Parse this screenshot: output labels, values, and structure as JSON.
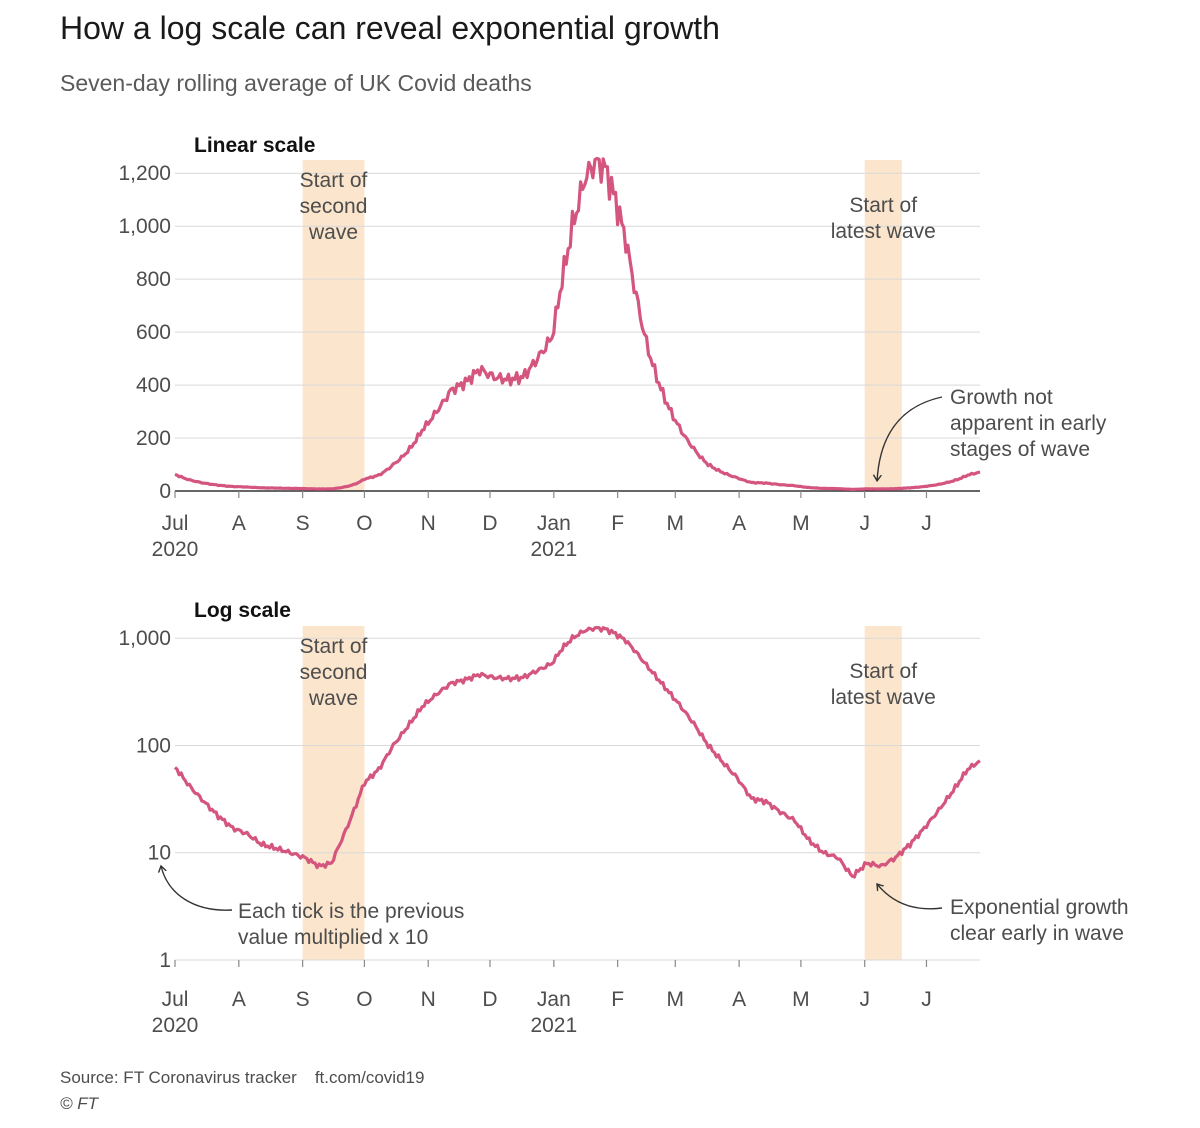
{
  "title": "How a log scale can reveal exponential growth",
  "subtitle": "Seven-day rolling average of UK Covid deaths",
  "source": "Source: FT Coronavirus tracker",
  "source_url": "ft.com/covid19",
  "copyright": "© FT",
  "colors": {
    "line": "#d4557d",
    "band": "#fbe5cc",
    "grid": "#d9d9d9",
    "axis": "#333333",
    "text": "#4d4d4d"
  },
  "chart_data": [
    {
      "type": "line",
      "panel_label": "Linear scale",
      "scale": "linear",
      "ylim": [
        0,
        1250
      ],
      "yticks": [
        0,
        200,
        400,
        600,
        800,
        1000,
        1200
      ],
      "ytick_labels": [
        "0",
        "200",
        "400",
        "600",
        "800",
        "1,000",
        "1,200"
      ],
      "xlim": [
        "2020-07-01",
        "2021-07-27"
      ],
      "xticks": [
        {
          "date": "2020-07-01",
          "label": "Jul",
          "year": "2020"
        },
        {
          "date": "2020-08-01",
          "label": "A"
        },
        {
          "date": "2020-09-01",
          "label": "S"
        },
        {
          "date": "2020-10-01",
          "label": "O"
        },
        {
          "date": "2020-11-01",
          "label": "N"
        },
        {
          "date": "2020-12-01",
          "label": "D"
        },
        {
          "date": "2021-01-01",
          "label": "Jan",
          "year": "2021"
        },
        {
          "date": "2021-02-01",
          "label": "F"
        },
        {
          "date": "2021-03-01",
          "label": "M"
        },
        {
          "date": "2021-04-01",
          "label": "A"
        },
        {
          "date": "2021-05-01",
          "label": "M"
        },
        {
          "date": "2021-06-01",
          "label": "J"
        },
        {
          "date": "2021-07-01",
          "label": "J"
        }
      ],
      "bands": [
        {
          "start": "2020-09-01",
          "end": "2020-10-01",
          "label_lines": [
            "Start of",
            "second",
            "wave"
          ]
        },
        {
          "start": "2021-06-01",
          "end": "2021-06-19",
          "label_lines": [
            "Start of",
            "latest wave"
          ]
        }
      ],
      "annotation": {
        "lines": [
          "Growth not",
          "apparent in early",
          "stages of wave"
        ],
        "target": {
          "date": "2021-06-07",
          "value": 8
        }
      }
    },
    {
      "type": "line",
      "panel_label": "Log scale",
      "scale": "log",
      "ylim": [
        1,
        1300
      ],
      "yticks": [
        1,
        10,
        100,
        1000
      ],
      "ytick_labels": [
        "1",
        "10",
        "100",
        "1,000"
      ],
      "xlim": [
        "2020-07-01",
        "2021-07-27"
      ],
      "xticks": [
        {
          "date": "2020-07-01",
          "label": "Jul",
          "year": "2020"
        },
        {
          "date": "2020-08-01",
          "label": "A"
        },
        {
          "date": "2020-09-01",
          "label": "S"
        },
        {
          "date": "2020-10-01",
          "label": "O"
        },
        {
          "date": "2020-11-01",
          "label": "N"
        },
        {
          "date": "2020-12-01",
          "label": "D"
        },
        {
          "date": "2021-01-01",
          "label": "Jan",
          "year": "2021"
        },
        {
          "date": "2021-02-01",
          "label": "F"
        },
        {
          "date": "2021-03-01",
          "label": "M"
        },
        {
          "date": "2021-04-01",
          "label": "A"
        },
        {
          "date": "2021-05-01",
          "label": "M"
        },
        {
          "date": "2021-06-01",
          "label": "J"
        },
        {
          "date": "2021-07-01",
          "label": "J"
        }
      ],
      "bands": [
        {
          "start": "2020-09-01",
          "end": "2020-10-01",
          "label_lines": [
            "Start of",
            "second",
            "wave"
          ]
        },
        {
          "start": "2021-06-01",
          "end": "2021-06-19",
          "label_lines": [
            "Start of",
            "latest wave"
          ]
        }
      ],
      "annotations": [
        {
          "lines": [
            "Each tick is the previous",
            "value multiplied x 10"
          ],
          "target": {
            "date": "2020-07-01",
            "value": 7.2
          }
        },
        {
          "lines": [
            "Exponential growth",
            "clear early in wave"
          ],
          "target": {
            "date": "2021-06-08",
            "value": 6.5
          }
        }
      ]
    }
  ],
  "series": {
    "name": "",
    "points": [
      [
        "2020-07-01",
        63
      ],
      [
        "2020-07-08",
        42
      ],
      [
        "2020-07-15",
        30
      ],
      [
        "2020-07-22",
        22
      ],
      [
        "2020-07-29",
        17
      ],
      [
        "2020-08-05",
        15
      ],
      [
        "2020-08-12",
        12
      ],
      [
        "2020-08-19",
        11
      ],
      [
        "2020-08-26",
        10
      ],
      [
        "2020-09-02",
        9
      ],
      [
        "2020-09-09",
        7.5
      ],
      [
        "2020-09-15",
        8
      ],
      [
        "2020-09-19",
        12
      ],
      [
        "2020-09-23",
        18
      ],
      [
        "2020-09-27",
        28
      ],
      [
        "2020-10-01",
        45
      ],
      [
        "2020-10-08",
        60
      ],
      [
        "2020-10-15",
        100
      ],
      [
        "2020-10-22",
        150
      ],
      [
        "2020-10-29",
        230
      ],
      [
        "2020-11-05",
        300
      ],
      [
        "2020-11-12",
        380
      ],
      [
        "2020-11-19",
        410
      ],
      [
        "2020-11-26",
        460
      ],
      [
        "2020-12-03",
        430
      ],
      [
        "2020-12-10",
        420
      ],
      [
        "2020-12-17",
        430
      ],
      [
        "2020-12-24",
        500
      ],
      [
        "2020-12-31",
        580
      ],
      [
        "2021-01-05",
        800
      ],
      [
        "2021-01-10",
        1000
      ],
      [
        "2021-01-16",
        1180
      ],
      [
        "2021-01-21",
        1240
      ],
      [
        "2021-01-26",
        1220
      ],
      [
        "2021-01-31",
        1100
      ],
      [
        "2021-02-05",
        950
      ],
      [
        "2021-02-10",
        740
      ],
      [
        "2021-02-15",
        560
      ],
      [
        "2021-02-20",
        430
      ],
      [
        "2021-02-25",
        330
      ],
      [
        "2021-03-03",
        240
      ],
      [
        "2021-03-10",
        160
      ],
      [
        "2021-03-17",
        100
      ],
      [
        "2021-03-24",
        70
      ],
      [
        "2021-03-31",
        50
      ],
      [
        "2021-04-07",
        32
      ],
      [
        "2021-04-14",
        30
      ],
      [
        "2021-04-21",
        24
      ],
      [
        "2021-04-28",
        20
      ],
      [
        "2021-05-05",
        13
      ],
      [
        "2021-05-12",
        10
      ],
      [
        "2021-05-19",
        9
      ],
      [
        "2021-05-26",
        6
      ],
      [
        "2021-06-02",
        8
      ],
      [
        "2021-06-09",
        7.5
      ],
      [
        "2021-06-16",
        9
      ],
      [
        "2021-06-23",
        12
      ],
      [
        "2021-06-30",
        17
      ],
      [
        "2021-07-07",
        25
      ],
      [
        "2021-07-14",
        38
      ],
      [
        "2021-07-21",
        60
      ],
      [
        "2021-07-27",
        72
      ]
    ]
  }
}
